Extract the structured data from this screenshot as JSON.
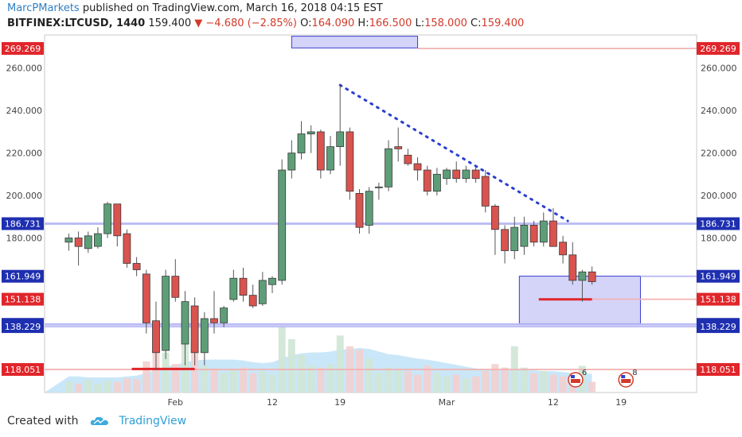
{
  "header": {
    "author": "MarcPMarkets",
    "published_text": "published on TradingView.com, March 16, 2018 04:15 EST",
    "symbol": "BITFINEX:LTCUSD, 1440",
    "last": "159.400",
    "change": "−4.680 (−2.85%)",
    "o_label": "O:",
    "o": "164.090",
    "h_label": "H:",
    "h": "166.500",
    "l_label": "L:",
    "l": "158.000",
    "c_label": "C:",
    "c": "159.400"
  },
  "footer": {
    "created_with": "Created with",
    "brand": "TradingView"
  },
  "colors": {
    "up": "#5d9e78",
    "down": "#d9534f",
    "level_line": "#b6b6f5",
    "red_line": "#f2b3b3",
    "zone_fill": "#c9c9f7",
    "zone_stroke": "#3b3bd0",
    "trendline": "#2a3fd0",
    "volume_ma": "#bfe3f7"
  },
  "chart_data": {
    "type": "candlestick",
    "ylim": [
      103,
      275
    ],
    "y_ticks": [
      180,
      200,
      220,
      240,
      260
    ],
    "x_ticks": [
      {
        "label": "Feb",
        "day": 32
      },
      {
        "label": "12",
        "day": 42
      },
      {
        "label": "19",
        "day": 49
      },
      {
        "label": "Mar",
        "day": 60
      },
      {
        "label": "12",
        "day": 71
      },
      {
        "label": "19",
        "day": 78
      }
    ],
    "levels": [
      {
        "value": 269.269,
        "label": "269.269",
        "style": "red"
      },
      {
        "value": 186.731,
        "label": "186.731",
        "style": "blue"
      },
      {
        "value": 161.949,
        "label": "161.949",
        "style": "blue"
      },
      {
        "value": 151.138,
        "label": "151.138",
        "style": "red"
      },
      {
        "value": 139.296,
        "label": "139.296",
        "style": "blue"
      },
      {
        "value": 138.229,
        "label": "138.229",
        "style": "blue"
      },
      {
        "value": 118.051,
        "label": "118.051",
        "style": "red"
      }
    ],
    "trendline": {
      "start": {
        "day": 49,
        "price": 252
      },
      "end": {
        "day": 72.5,
        "price": 188
      }
    },
    "zones": [
      {
        "day_start": 67.5,
        "day_end": 80,
        "price_low": 139.5,
        "price_high": 162
      },
      {
        "day_start": 44,
        "day_end": 57,
        "price_low": 269.5,
        "price_high": 275
      }
    ],
    "red_segments": [
      {
        "day_start": 27.5,
        "day_end": 34,
        "price": 118.3
      },
      {
        "day_start": 69.5,
        "day_end": 75,
        "price": 151.1
      }
    ],
    "candles": [
      {
        "day": 21,
        "o": 178,
        "h": 182,
        "l": 174,
        "c": 180
      },
      {
        "day": 22,
        "o": 180,
        "h": 183,
        "l": 167,
        "c": 176
      },
      {
        "day": 23,
        "o": 175,
        "h": 183,
        "l": 173,
        "c": 181
      },
      {
        "day": 24,
        "o": 176,
        "h": 185,
        "l": 175,
        "c": 182
      },
      {
        "day": 25,
        "o": 182,
        "h": 197,
        "l": 180,
        "c": 196
      },
      {
        "day": 26,
        "o": 196,
        "h": 196,
        "l": 176,
        "c": 181
      },
      {
        "day": 27,
        "o": 182,
        "h": 184,
        "l": 166,
        "c": 168
      },
      {
        "day": 28,
        "o": 168,
        "h": 171,
        "l": 162,
        "c": 165
      },
      {
        "day": 29,
        "o": 163,
        "h": 165,
        "l": 135,
        "c": 140
      },
      {
        "day": 30,
        "o": 141,
        "h": 150,
        "l": 118,
        "c": 126
      },
      {
        "day": 31,
        "o": 127,
        "h": 165,
        "l": 123,
        "c": 162
      },
      {
        "day": 32,
        "o": 162,
        "h": 170,
        "l": 150,
        "c": 152
      },
      {
        "day": 33,
        "o": 130,
        "h": 155,
        "l": 120,
        "c": 150
      },
      {
        "day": 34,
        "o": 148,
        "h": 152,
        "l": 120,
        "c": 126
      },
      {
        "day": 35,
        "o": 126,
        "h": 145,
        "l": 120,
        "c": 142
      },
      {
        "day": 36,
        "o": 142,
        "h": 155,
        "l": 135,
        "c": 140
      },
      {
        "day": 37,
        "o": 140,
        "h": 148,
        "l": 138,
        "c": 147
      },
      {
        "day": 38,
        "o": 151,
        "h": 165,
        "l": 150,
        "c": 161
      },
      {
        "day": 39,
        "o": 161,
        "h": 166,
        "l": 150,
        "c": 153
      },
      {
        "day": 40,
        "o": 153,
        "h": 158,
        "l": 147,
        "c": 148
      },
      {
        "day": 41,
        "o": 149,
        "h": 164,
        "l": 148,
        "c": 160
      },
      {
        "day": 42,
        "o": 158,
        "h": 162,
        "l": 154,
        "c": 161
      },
      {
        "day": 43,
        "o": 160,
        "h": 217,
        "l": 158,
        "c": 212
      },
      {
        "day": 44,
        "o": 212,
        "h": 226,
        "l": 208,
        "c": 220
      },
      {
        "day": 45,
        "o": 220,
        "h": 235,
        "l": 217,
        "c": 229
      },
      {
        "day": 46,
        "o": 229,
        "h": 233,
        "l": 220,
        "c": 230
      },
      {
        "day": 47,
        "o": 230,
        "h": 231,
        "l": 208,
        "c": 212
      },
      {
        "day": 48,
        "o": 212,
        "h": 228,
        "l": 210,
        "c": 223
      },
      {
        "day": 49,
        "o": 223,
        "h": 252,
        "l": 214,
        "c": 230
      },
      {
        "day": 50,
        "o": 230,
        "h": 232,
        "l": 198,
        "c": 202
      },
      {
        "day": 51,
        "o": 201,
        "h": 203,
        "l": 182,
        "c": 185
      },
      {
        "day": 52,
        "o": 186,
        "h": 204,
        "l": 182,
        "c": 202
      },
      {
        "day": 53,
        "o": 204,
        "h": 206,
        "l": 198,
        "c": 204
      },
      {
        "day": 54,
        "o": 204,
        "h": 226,
        "l": 202,
        "c": 222
      },
      {
        "day": 55,
        "o": 223,
        "h": 232,
        "l": 216,
        "c": 222
      },
      {
        "day": 56,
        "o": 219,
        "h": 222,
        "l": 214,
        "c": 215
      },
      {
        "day": 57,
        "o": 215,
        "h": 218,
        "l": 207,
        "c": 212
      },
      {
        "day": 58,
        "o": 212,
        "h": 214,
        "l": 200,
        "c": 202
      },
      {
        "day": 59,
        "o": 202,
        "h": 213,
        "l": 200,
        "c": 210
      },
      {
        "day": 60,
        "o": 208,
        "h": 213,
        "l": 205,
        "c": 212
      },
      {
        "day": 61,
        "o": 212,
        "h": 216,
        "l": 206,
        "c": 208
      },
      {
        "day": 62,
        "o": 208,
        "h": 214,
        "l": 206,
        "c": 212
      },
      {
        "day": 63,
        "o": 212,
        "h": 214,
        "l": 206,
        "c": 208
      },
      {
        "day": 64,
        "o": 209,
        "h": 212,
        "l": 192,
        "c": 195
      },
      {
        "day": 65,
        "o": 195,
        "h": 196,
        "l": 172,
        "c": 184
      },
      {
        "day": 66,
        "o": 184,
        "h": 186,
        "l": 168,
        "c": 174
      },
      {
        "day": 67,
        "o": 174,
        "h": 190,
        "l": 170,
        "c": 185
      },
      {
        "day": 68,
        "o": 176,
        "h": 190,
        "l": 172,
        "c": 186
      },
      {
        "day": 69,
        "o": 186,
        "h": 188,
        "l": 176,
        "c": 178
      },
      {
        "day": 70,
        "o": 178,
        "h": 192,
        "l": 176,
        "c": 188
      },
      {
        "day": 71,
        "o": 188,
        "h": 194,
        "l": 176,
        "c": 176
      },
      {
        "day": 72,
        "o": 178,
        "h": 181,
        "l": 168,
        "c": 172
      },
      {
        "day": 73,
        "o": 172,
        "h": 178,
        "l": 158,
        "c": 160
      },
      {
        "day": 74,
        "o": 160,
        "h": 165,
        "l": 150,
        "c": 164
      },
      {
        "day": 75,
        "o": 164,
        "h": 166.5,
        "l": 158,
        "c": 159.4
      }
    ],
    "volume": [
      {
        "day": 21,
        "v": 0.12,
        "up": true
      },
      {
        "day": 22,
        "v": 0.1,
        "up": false
      },
      {
        "day": 23,
        "v": 0.14,
        "up": true
      },
      {
        "day": 24,
        "v": 0.1,
        "up": true
      },
      {
        "day": 25,
        "v": 0.13,
        "up": true
      },
      {
        "day": 26,
        "v": 0.12,
        "up": false
      },
      {
        "day": 27,
        "v": 0.16,
        "up": false
      },
      {
        "day": 28,
        "v": 0.15,
        "up": false
      },
      {
        "day": 29,
        "v": 0.35,
        "up": false
      },
      {
        "day": 30,
        "v": 0.55,
        "up": false
      },
      {
        "day": 31,
        "v": 0.45,
        "up": true
      },
      {
        "day": 32,
        "v": 0.32,
        "up": false
      },
      {
        "day": 33,
        "v": 0.55,
        "up": true
      },
      {
        "day": 34,
        "v": 0.48,
        "up": false
      },
      {
        "day": 35,
        "v": 0.3,
        "up": true
      },
      {
        "day": 36,
        "v": 0.27,
        "up": false
      },
      {
        "day": 37,
        "v": 0.22,
        "up": true
      },
      {
        "day": 38,
        "v": 0.25,
        "up": true
      },
      {
        "day": 39,
        "v": 0.28,
        "up": false
      },
      {
        "day": 40,
        "v": 0.22,
        "up": false
      },
      {
        "day": 41,
        "v": 0.24,
        "up": true
      },
      {
        "day": 42,
        "v": 0.2,
        "up": true
      },
      {
        "day": 43,
        "v": 0.74,
        "up": true
      },
      {
        "day": 44,
        "v": 0.6,
        "up": true
      },
      {
        "day": 45,
        "v": 0.42,
        "up": true
      },
      {
        "day": 46,
        "v": 0.3,
        "up": true
      },
      {
        "day": 47,
        "v": 0.28,
        "up": false
      },
      {
        "day": 48,
        "v": 0.32,
        "up": true
      },
      {
        "day": 49,
        "v": 0.64,
        "up": true
      },
      {
        "day": 50,
        "v": 0.52,
        "up": false
      },
      {
        "day": 51,
        "v": 0.48,
        "up": false
      },
      {
        "day": 52,
        "v": 0.38,
        "up": true
      },
      {
        "day": 53,
        "v": 0.22,
        "up": true
      },
      {
        "day": 54,
        "v": 0.28,
        "up": true
      },
      {
        "day": 55,
        "v": 0.26,
        "up": true
      },
      {
        "day": 56,
        "v": 0.24,
        "up": false
      },
      {
        "day": 57,
        "v": 0.2,
        "up": false
      },
      {
        "day": 58,
        "v": 0.3,
        "up": false
      },
      {
        "day": 59,
        "v": 0.22,
        "up": true
      },
      {
        "day": 60,
        "v": 0.18,
        "up": true
      },
      {
        "day": 61,
        "v": 0.2,
        "up": false
      },
      {
        "day": 62,
        "v": 0.16,
        "up": true
      },
      {
        "day": 63,
        "v": 0.18,
        "up": false
      },
      {
        "day": 64,
        "v": 0.24,
        "up": false
      },
      {
        "day": 65,
        "v": 0.32,
        "up": false
      },
      {
        "day": 66,
        "v": 0.28,
        "up": false
      },
      {
        "day": 67,
        "v": 0.52,
        "up": true
      },
      {
        "day": 68,
        "v": 0.28,
        "up": true
      },
      {
        "day": 69,
        "v": 0.22,
        "up": false
      },
      {
        "day": 70,
        "v": 0.24,
        "up": true
      },
      {
        "day": 71,
        "v": 0.2,
        "up": false
      },
      {
        "day": 72,
        "v": 0.18,
        "up": false
      },
      {
        "day": 73,
        "v": 0.22,
        "up": false
      },
      {
        "day": 74,
        "v": 0.3,
        "up": true
      },
      {
        "day": 75,
        "v": 0.12,
        "up": false
      }
    ],
    "volume_ma": [
      0.18,
      0.18,
      0.17,
      0.17,
      0.17,
      0.17,
      0.18,
      0.19,
      0.22,
      0.26,
      0.29,
      0.31,
      0.34,
      0.36,
      0.37,
      0.37,
      0.37,
      0.37,
      0.36,
      0.34,
      0.33,
      0.34,
      0.38,
      0.42,
      0.44,
      0.45,
      0.45,
      0.46,
      0.48,
      0.49,
      0.5,
      0.49,
      0.46,
      0.43,
      0.42,
      0.4,
      0.38,
      0.37,
      0.35,
      0.33,
      0.31,
      0.29,
      0.27,
      0.26,
      0.25,
      0.25,
      0.26,
      0.26,
      0.25,
      0.24,
      0.24,
      0.23,
      0.22,
      0.22,
      0.21
    ],
    "events": [
      {
        "day": 73.3,
        "label": "6"
      },
      {
        "day": 78.5,
        "label": "8"
      }
    ]
  }
}
